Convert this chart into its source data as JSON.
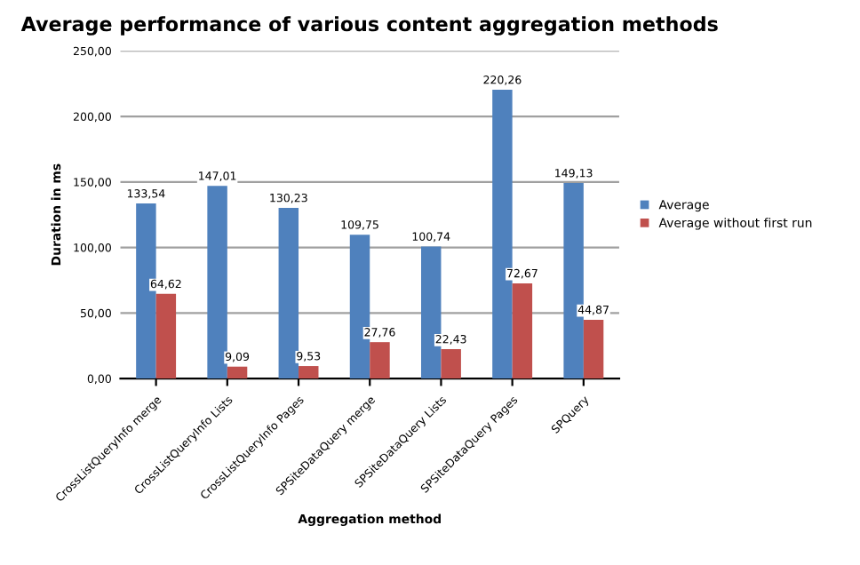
{
  "chart_data": {
    "type": "bar",
    "title": "Average performance of various content aggregation methods",
    "xlabel": "Aggregation method",
    "ylabel": "Duration in ms",
    "categories": [
      "CrossListQueryInfo merge",
      "CrossListQueryInfo Lists",
      "CrossListQueryInfo Pages",
      "SPSiteDataQuery merge",
      "SPSiteDataQuery Lists",
      "SPSiteDataQuery Pages",
      "SPQuery"
    ],
    "series": [
      {
        "name": "Average",
        "color": "#4f81bd",
        "values": [
          133.54,
          147.01,
          130.23,
          109.75,
          100.74,
          220.26,
          149.13
        ],
        "value_labels": [
          "133,54",
          "147,01",
          "130,23",
          "109,75",
          "100,74",
          "220,26",
          "149,13"
        ]
      },
      {
        "name": "Average without first run",
        "color": "#c0504d",
        "values": [
          64.62,
          9.09,
          9.53,
          27.76,
          22.43,
          72.67,
          44.87
        ],
        "value_labels": [
          "64,62",
          "9,09",
          "9,53",
          "27,76",
          "22,43",
          "72,67",
          "44,87"
        ]
      }
    ],
    "ylim": [
      0,
      250
    ],
    "yticks": [
      {
        "value": 0,
        "label": "0,00"
      },
      {
        "value": 50,
        "label": "50,00"
      },
      {
        "value": 100,
        "label": "100,00"
      },
      {
        "value": 150,
        "label": "150,00"
      },
      {
        "value": 200,
        "label": "200,00"
      },
      {
        "value": 250,
        "label": "250,00"
      }
    ],
    "grid": "y",
    "legend": "right"
  }
}
